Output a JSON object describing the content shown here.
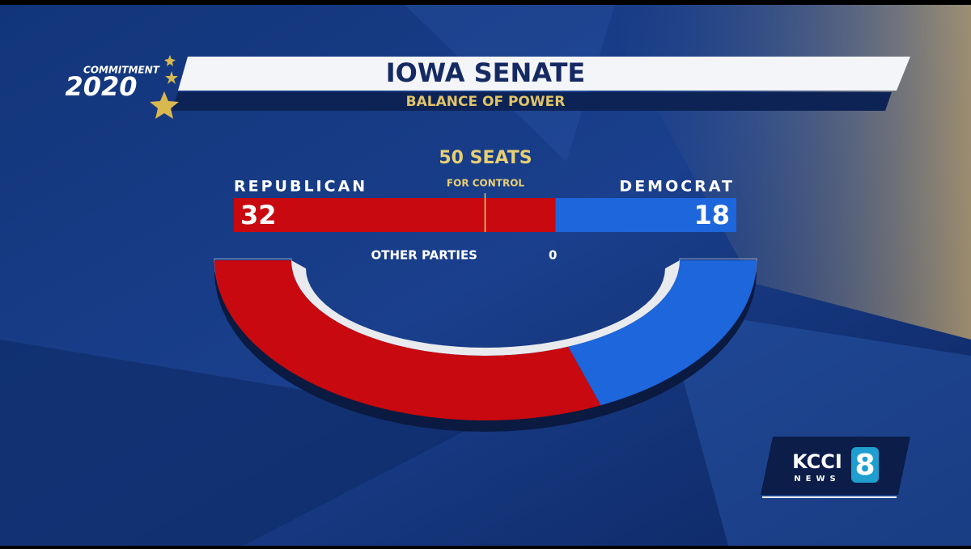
{
  "chart_data": {
    "type": "balance",
    "title": "IOWA SENATE",
    "subtitle": "BALANCE OF POWER",
    "control_label": "50 SEATS",
    "control_sublabel": "FOR CONTROL",
    "series": [
      {
        "name": "REPUBLICAN",
        "color": "#c8090f",
        "values": [
          32
        ]
      },
      {
        "name": "DEMOCRAT",
        "color": "#1d66dc",
        "values": [
          18
        ]
      },
      {
        "name": "OTHER PARTIES",
        "color": "#bfc4cc",
        "values": [
          0
        ]
      }
    ]
  },
  "branding": {
    "event": "COMMITMENT",
    "year": "2020",
    "station": "KCCI",
    "station_sub": "NEWS",
    "channel": "8"
  }
}
